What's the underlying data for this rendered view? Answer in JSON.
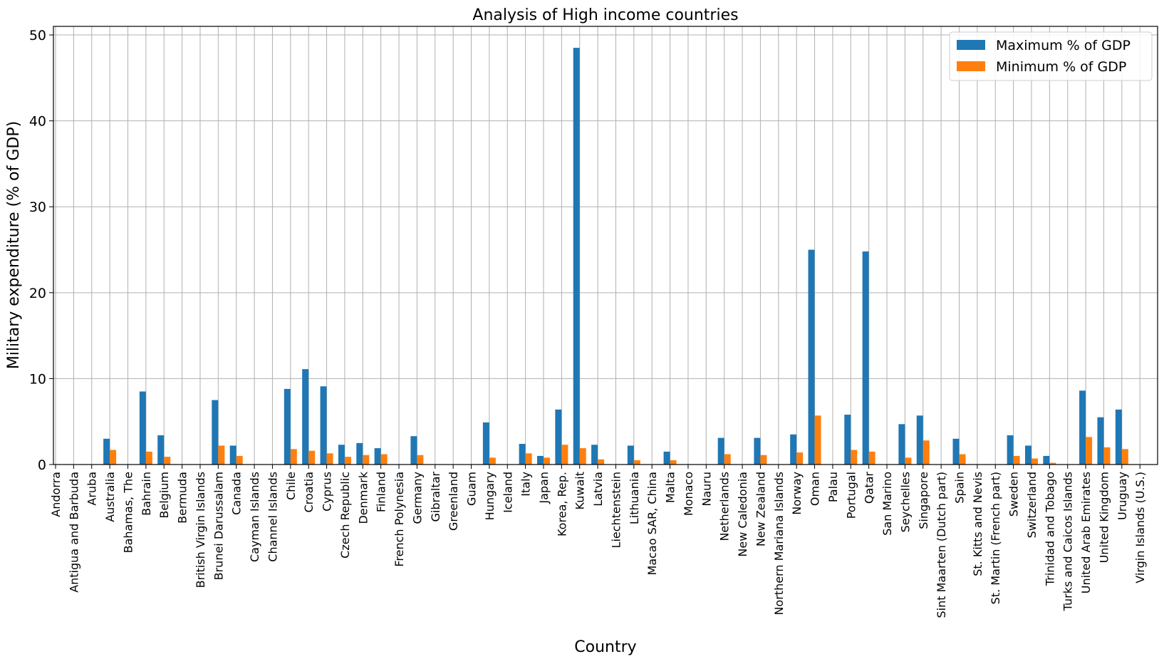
{
  "chart_data": {
    "type": "bar",
    "title": "Analysis of High income countries",
    "xlabel": "Country",
    "ylabel": "Military expenditure (% of GDP)",
    "ylim": [
      0,
      51
    ],
    "yticks": [
      0,
      10,
      20,
      30,
      40,
      50
    ],
    "grid": true,
    "legend_position": "top-right",
    "categories": [
      "Andorra",
      "Antigua and Barbuda",
      "Aruba",
      "Australia",
      "Bahamas, The",
      "Bahrain",
      "Belgium",
      "Bermuda",
      "British Virgin Islands",
      "Brunei Darussalam",
      "Canada",
      "Cayman Islands",
      "Channel Islands",
      "Chile",
      "Croatia",
      "Cyprus",
      "Czech Republic",
      "Denmark",
      "Finland",
      "French Polynesia",
      "Germany",
      "Gibraltar",
      "Greenland",
      "Guam",
      "Hungary",
      "Iceland",
      "Italy",
      "Japan",
      "Korea, Rep.",
      "Kuwait",
      "Latvia",
      "Liechtenstein",
      "Lithuania",
      "Macao SAR, China",
      "Malta",
      "Monaco",
      "Nauru",
      "Netherlands",
      "New Caledonia",
      "New Zealand",
      "Northern Mariana Islands",
      "Norway",
      "Oman",
      "Palau",
      "Portugal",
      "Qatar",
      "San Marino",
      "Seychelles",
      "Singapore",
      "Sint Maarten (Dutch part)",
      "Spain",
      "St. Kitts and Nevis",
      "St. Martin (French part)",
      "Sweden",
      "Switzerland",
      "Trinidad and Tobago",
      "Turks and Caicos Islands",
      "United Arab Emirates",
      "United Kingdom",
      "Uruguay",
      "Virgin Islands (U.S.)"
    ],
    "series": [
      {
        "name": "Maximum % of GDP",
        "color": "#1f77b4",
        "values": [
          0,
          0,
          0,
          3.0,
          0,
          8.5,
          3.4,
          0,
          0,
          7.5,
          2.2,
          0,
          0,
          8.8,
          11.1,
          9.1,
          2.3,
          2.5,
          1.9,
          0,
          3.3,
          0,
          0,
          0,
          4.9,
          0,
          2.4,
          1.0,
          6.4,
          48.5,
          2.3,
          0,
          2.2,
          0,
          1.5,
          0,
          0,
          3.1,
          0,
          3.1,
          0,
          3.5,
          25.0,
          0,
          5.8,
          24.8,
          0,
          4.7,
          5.7,
          0,
          3.0,
          0,
          0,
          3.4,
          2.2,
          1.0,
          0,
          8.6,
          5.5,
          6.4,
          0
        ]
      },
      {
        "name": "Minimum % of GDP",
        "color": "#ff7f0e",
        "values": [
          0,
          0,
          0,
          1.7,
          0,
          1.5,
          0.9,
          0,
          0,
          2.2,
          1.0,
          0,
          0,
          1.8,
          1.6,
          1.3,
          0.9,
          1.1,
          1.2,
          0,
          1.1,
          0,
          0,
          0,
          0.8,
          0,
          1.3,
          0.8,
          2.3,
          1.9,
          0.6,
          0,
          0.5,
          0,
          0.5,
          0,
          0,
          1.2,
          0,
          1.1,
          0,
          1.4,
          5.7,
          0,
          1.7,
          1.5,
          0,
          0.8,
          2.8,
          0,
          1.2,
          0,
          0,
          1.0,
          0.7,
          0.2,
          0,
          3.2,
          2.0,
          1.8,
          0
        ]
      }
    ]
  }
}
